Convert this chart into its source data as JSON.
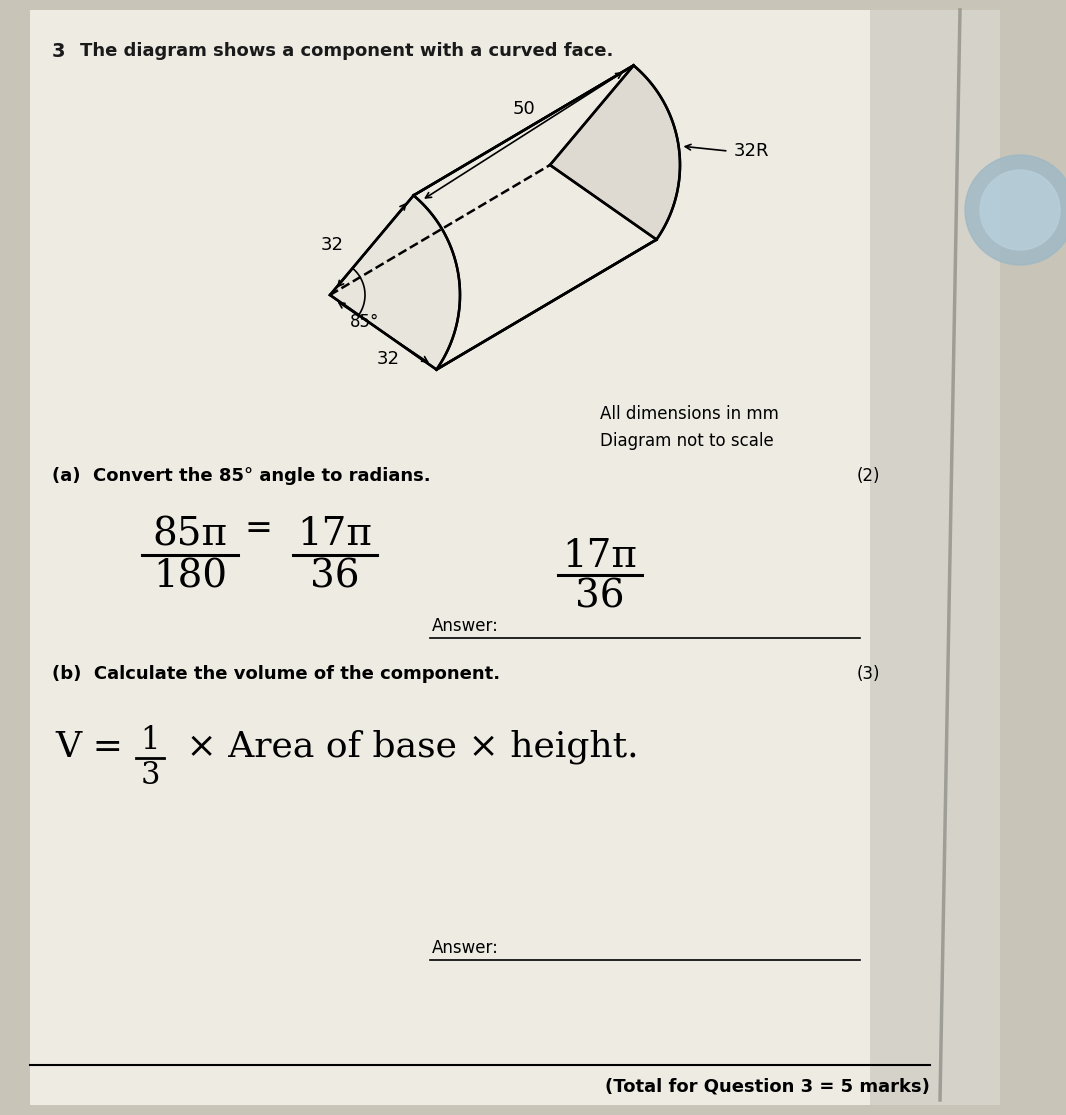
{
  "bg_color_outer": "#c8c4b8",
  "bg_color_paper": "#edeae2",
  "bg_color_right": "#d0cec8",
  "question_number": "3",
  "question_text": "The diagram shows a component with a curved face.",
  "dim_label_50": "50",
  "dim_label_32R": "32R",
  "dim_label_32_left": "32",
  "dim_label_32_bottom": "32",
  "dim_label_85": "85°",
  "note1": "All dimensions in mm",
  "note2": "Diagram not to scale",
  "part_a_label": "(a)  Convert the 85° angle to radians.",
  "part_a_marks": "(2)",
  "part_a_answer_label": "Answer:",
  "part_b_label": "(b)  Calculate the volume of the component.",
  "part_b_marks": "(3)",
  "part_b_answer_label": "Answer:",
  "total_marks": "(Total for Question 3 = 5 marks)"
}
